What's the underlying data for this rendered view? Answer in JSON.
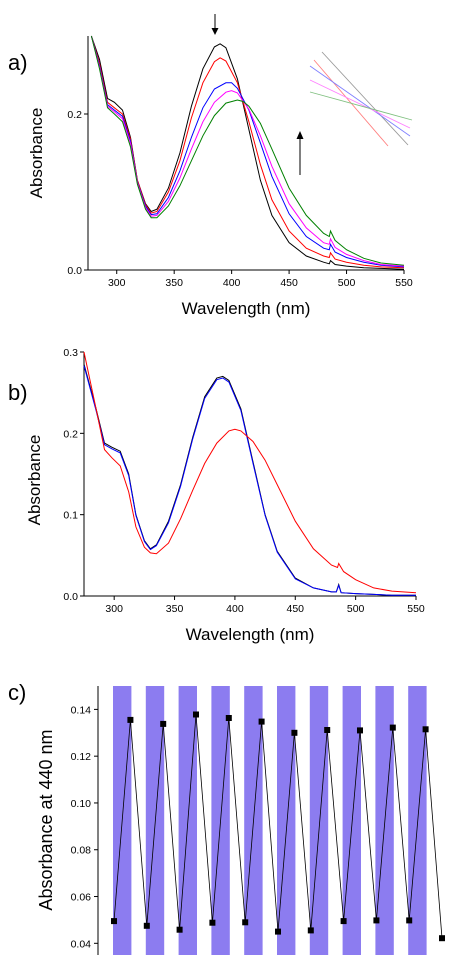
{
  "chart_data": [
    {
      "panel": "a)",
      "type": "line",
      "xlabel": "Wavelength (nm)",
      "ylabel": "Absorbance",
      "xlim": [
        275,
        550
      ],
      "ylim": [
        0.0,
        0.3
      ],
      "xticks": [
        300,
        350,
        400,
        450,
        500,
        550
      ],
      "yticks": [
        0.0,
        0.2
      ],
      "ytick_labels": [
        "0.0",
        "0.2"
      ],
      "series": [
        {
          "color": "#000000",
          "x": [
            278,
            285,
            292,
            298,
            305,
            312,
            318,
            325,
            330,
            335,
            345,
            355,
            365,
            375,
            385,
            390,
            395,
            405,
            415,
            425,
            435,
            450,
            465,
            480,
            485,
            486,
            490,
            500,
            515,
            530,
            550
          ],
          "y": [
            0.3,
            0.27,
            0.22,
            0.215,
            0.205,
            0.17,
            0.115,
            0.085,
            0.075,
            0.078,
            0.105,
            0.15,
            0.21,
            0.258,
            0.286,
            0.29,
            0.285,
            0.245,
            0.18,
            0.115,
            0.07,
            0.035,
            0.018,
            0.01,
            0.008,
            0.012,
            0.007,
            0.005,
            0.003,
            0.002,
            0.001
          ]
        },
        {
          "color": "#ff0000",
          "x": [
            278,
            285,
            292,
            298,
            305,
            312,
            318,
            325,
            330,
            335,
            345,
            355,
            365,
            375,
            385,
            390,
            395,
            405,
            415,
            425,
            435,
            450,
            465,
            480,
            485,
            486,
            490,
            500,
            515,
            530,
            550
          ],
          "y": [
            0.3,
            0.265,
            0.215,
            0.208,
            0.2,
            0.168,
            0.115,
            0.084,
            0.073,
            0.075,
            0.1,
            0.14,
            0.195,
            0.24,
            0.267,
            0.272,
            0.268,
            0.24,
            0.19,
            0.135,
            0.09,
            0.05,
            0.028,
            0.018,
            0.016,
            0.022,
            0.014,
            0.01,
            0.006,
            0.004,
            0.003
          ]
        },
        {
          "color": "#0000ff",
          "x": [
            278,
            285,
            292,
            298,
            305,
            312,
            318,
            325,
            330,
            335,
            345,
            355,
            365,
            375,
            385,
            395,
            400,
            405,
            415,
            425,
            435,
            450,
            465,
            480,
            485,
            486,
            490,
            500,
            515,
            530,
            550
          ],
          "y": [
            0.3,
            0.262,
            0.212,
            0.205,
            0.197,
            0.165,
            0.113,
            0.082,
            0.071,
            0.072,
            0.093,
            0.127,
            0.17,
            0.208,
            0.232,
            0.24,
            0.24,
            0.233,
            0.205,
            0.163,
            0.12,
            0.072,
            0.043,
            0.028,
            0.026,
            0.033,
            0.023,
            0.016,
            0.01,
            0.006,
            0.004
          ]
        },
        {
          "color": "#ff00ff",
          "x": [
            278,
            285,
            292,
            298,
            305,
            312,
            318,
            325,
            330,
            335,
            345,
            355,
            365,
            375,
            385,
            395,
            400,
            405,
            415,
            425,
            435,
            450,
            465,
            480,
            485,
            486,
            490,
            500,
            515,
            530,
            550
          ],
          "y": [
            0.3,
            0.26,
            0.21,
            0.203,
            0.194,
            0.162,
            0.112,
            0.08,
            0.069,
            0.07,
            0.088,
            0.118,
            0.155,
            0.19,
            0.215,
            0.228,
            0.23,
            0.227,
            0.206,
            0.172,
            0.133,
            0.085,
            0.054,
            0.035,
            0.033,
            0.04,
            0.029,
            0.02,
            0.012,
            0.007,
            0.005
          ]
        },
        {
          "color": "#008000",
          "x": [
            278,
            285,
            292,
            298,
            305,
            312,
            318,
            325,
            330,
            335,
            345,
            355,
            365,
            375,
            385,
            395,
            405,
            410,
            415,
            425,
            435,
            450,
            465,
            480,
            485,
            486,
            490,
            500,
            515,
            530,
            550
          ],
          "y": [
            0.3,
            0.258,
            0.208,
            0.2,
            0.19,
            0.158,
            0.11,
            0.078,
            0.067,
            0.067,
            0.082,
            0.108,
            0.14,
            0.172,
            0.198,
            0.214,
            0.218,
            0.216,
            0.21,
            0.188,
            0.155,
            0.105,
            0.07,
            0.047,
            0.043,
            0.05,
            0.038,
            0.026,
            0.015,
            0.009,
            0.006
          ]
        }
      ],
      "annotations": {
        "arrow_down_at_x": 390,
        "arrow_up_at_x": 455
      }
    },
    {
      "panel": "b)",
      "type": "line",
      "xlabel": "Wavelength (nm)",
      "ylabel": "Absorbance",
      "xlim": [
        275,
        550
      ],
      "ylim": [
        0.0,
        0.3
      ],
      "xticks": [
        300,
        350,
        400,
        450,
        500,
        550
      ],
      "yticks": [
        0.0,
        0.1,
        0.2,
        0.3
      ],
      "ytick_labels": [
        "0.0",
        "0.1",
        "0.2",
        "0.3"
      ],
      "series": [
        {
          "color": "#000000",
          "x": [
            275,
            285,
            292,
            298,
            305,
            312,
            318,
            325,
            330,
            335,
            345,
            355,
            365,
            375,
            385,
            390,
            395,
            405,
            415,
            425,
            435,
            450,
            465,
            480,
            484,
            486,
            488,
            500,
            515,
            530,
            550
          ],
          "y": [
            0.285,
            0.23,
            0.188,
            0.183,
            0.178,
            0.15,
            0.1,
            0.068,
            0.058,
            0.063,
            0.092,
            0.137,
            0.195,
            0.245,
            0.268,
            0.27,
            0.265,
            0.23,
            0.165,
            0.1,
            0.055,
            0.022,
            0.01,
            0.005,
            0.005,
            0.014,
            0.004,
            0.003,
            0.002,
            0.001,
            0.001
          ]
        },
        {
          "color": "#0000ff",
          "x": [
            275,
            285,
            292,
            298,
            305,
            312,
            318,
            325,
            330,
            335,
            345,
            355,
            365,
            375,
            385,
            390,
            395,
            405,
            415,
            425,
            435,
            450,
            465,
            480,
            484,
            486,
            488,
            500,
            515,
            530,
            550
          ],
          "y": [
            0.283,
            0.228,
            0.186,
            0.181,
            0.176,
            0.148,
            0.099,
            0.067,
            0.057,
            0.062,
            0.09,
            0.135,
            0.193,
            0.243,
            0.266,
            0.268,
            0.263,
            0.228,
            0.163,
            0.099,
            0.054,
            0.021,
            0.01,
            0.005,
            0.005,
            0.013,
            0.004,
            0.003,
            0.002,
            0.001,
            0.001
          ]
        },
        {
          "color": "#ff0000",
          "x": [
            275,
            285,
            292,
            298,
            305,
            312,
            318,
            325,
            330,
            335,
            345,
            355,
            365,
            375,
            385,
            395,
            400,
            405,
            415,
            425,
            435,
            450,
            465,
            480,
            485,
            486,
            490,
            500,
            515,
            530,
            550
          ],
          "y": [
            0.3,
            0.23,
            0.18,
            0.17,
            0.16,
            0.128,
            0.085,
            0.06,
            0.053,
            0.052,
            0.065,
            0.095,
            0.13,
            0.163,
            0.188,
            0.203,
            0.205,
            0.203,
            0.19,
            0.167,
            0.137,
            0.092,
            0.058,
            0.038,
            0.035,
            0.04,
            0.03,
            0.02,
            0.01,
            0.006,
            0.004
          ]
        }
      ]
    },
    {
      "panel": "c)",
      "type": "scatter",
      "ylabel": "Absorbance at 440 nm",
      "ylim": [
        0.035,
        0.15
      ],
      "yticks": [
        0.04,
        0.06,
        0.08,
        0.1,
        0.12,
        0.14
      ],
      "ytick_labels": [
        "0.04",
        "0.06",
        "0.08",
        "0.10",
        "0.12",
        "0.14"
      ],
      "bar_color": "#8c7cf0",
      "bar_top_value": 0.15,
      "bars": 10,
      "points": [
        {
          "x": 1,
          "y": 0.0495
        },
        {
          "x": 2,
          "y": 0.1355
        },
        {
          "x": 3,
          "y": 0.0475
        },
        {
          "x": 4,
          "y": 0.1338
        },
        {
          "x": 5,
          "y": 0.0458
        },
        {
          "x": 6,
          "y": 0.1378
        },
        {
          "x": 7,
          "y": 0.0488
        },
        {
          "x": 8,
          "y": 0.1363
        },
        {
          "x": 9,
          "y": 0.049
        },
        {
          "x": 10,
          "y": 0.1348
        },
        {
          "x": 11,
          "y": 0.045
        },
        {
          "x": 12,
          "y": 0.13
        },
        {
          "x": 13,
          "y": 0.0455
        },
        {
          "x": 14,
          "y": 0.1312
        },
        {
          "x": 15,
          "y": 0.0495
        },
        {
          "x": 16,
          "y": 0.131
        },
        {
          "x": 17,
          "y": 0.0498
        },
        {
          "x": 18,
          "y": 0.1322
        },
        {
          "x": 19,
          "y": 0.0498
        },
        {
          "x": 20,
          "y": 0.1315
        },
        {
          "x": 21,
          "y": 0.0422
        }
      ]
    }
  ]
}
